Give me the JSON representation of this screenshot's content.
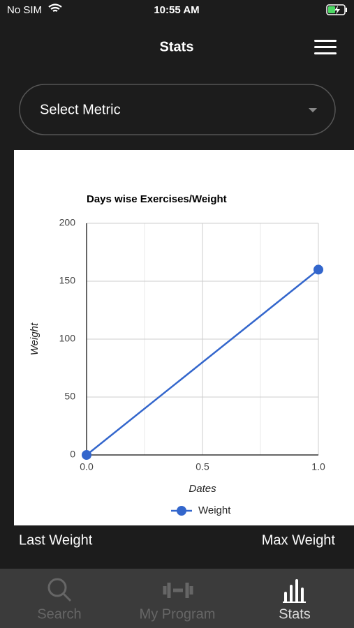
{
  "status_bar": {
    "carrier": "No SIM",
    "time": "10:55 AM"
  },
  "header": {
    "title": "Stats"
  },
  "select": {
    "placeholder": "Select Metric"
  },
  "chart_data": {
    "type": "line",
    "title": "Days wise Exercises/Weight",
    "x_label": "Dates",
    "y_label": "Weight",
    "x": [
      0,
      1
    ],
    "series": [
      {
        "name": "Weight",
        "color": "#3366cc",
        "values": [
          0,
          160
        ]
      }
    ],
    "xlim": [
      0,
      1
    ],
    "xticks": [
      {
        "value": 0,
        "label": "0.0"
      },
      0.5,
      {
        "value": 1,
        "label": "1.0"
      }
    ],
    "xminorticks": [
      0.25,
      0.75
    ],
    "ylim": [
      0,
      200
    ],
    "yticks": [
      0,
      50,
      100,
      150,
      200
    ],
    "grid": true,
    "legend": "bottom"
  },
  "stats": {
    "last_label": "Last Weight",
    "max_label": "Max Weight"
  },
  "tabs": [
    {
      "label": "Search"
    },
    {
      "label": "My Program"
    },
    {
      "label": "Stats"
    }
  ]
}
